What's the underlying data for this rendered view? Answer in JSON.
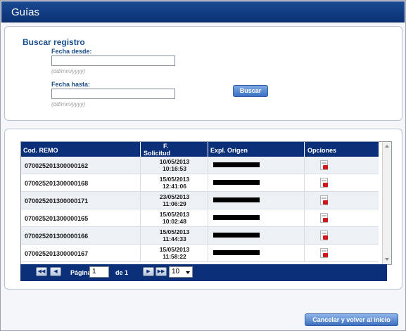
{
  "window": {
    "title": "Guías"
  },
  "search": {
    "heading": "Buscar registro",
    "from_label": "Fecha desde:",
    "from_value": "",
    "from_hint": "(dd/mm/yyyy)",
    "to_label": "Fecha hasta:",
    "to_value": "",
    "to_hint": "(dd/mm/yyyy)",
    "search_button": "Buscar"
  },
  "table": {
    "columns": {
      "code": "Cod. REMO",
      "date_line1": "F.",
      "date_line2": "Solicitud",
      "origin": "Expl. Origen",
      "options": "Opciones"
    },
    "rows": [
      {
        "code": "070025201300000162",
        "date": "10/05/2013",
        "time": "10:16:53"
      },
      {
        "code": "070025201300000168",
        "date": "15/05/2013",
        "time": "12:41:06"
      },
      {
        "code": "070025201300000171",
        "date": "23/05/2013",
        "time": "11:06:29"
      },
      {
        "code": "070025201300000165",
        "date": "15/05/2013",
        "time": "10:02:48"
      },
      {
        "code": "070025201300000166",
        "date": "15/05/2013",
        "time": "11:44:33"
      },
      {
        "code": "070025201300000167",
        "date": "15/05/2013",
        "time": "11:58:22"
      }
    ],
    "row_icon": "pdf-icon"
  },
  "pager": {
    "page_label": "Página",
    "page_value": "1",
    "of_label": "de 1",
    "page_size": "10"
  },
  "footer": {
    "cancel_button": "Cancelar y volver al inicio"
  },
  "colors": {
    "header_bg": "#0c2f7a",
    "title_bg": "#1a4a93",
    "accent_text": "#1b4d8c",
    "pdf_red": "#d01616"
  }
}
